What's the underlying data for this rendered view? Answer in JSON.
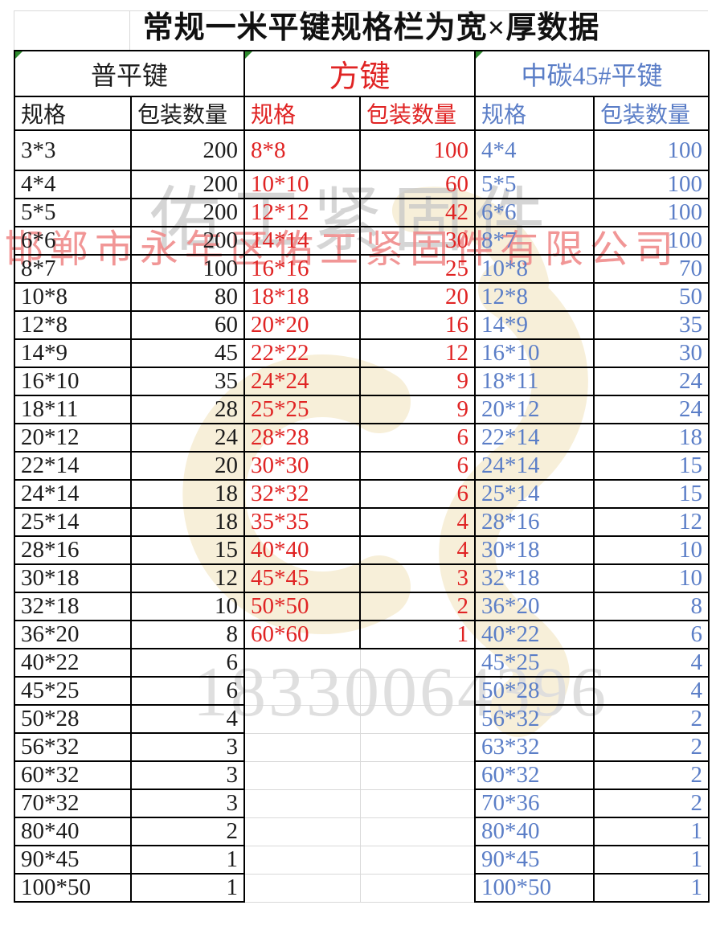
{
  "page": {
    "title": "常规一米平键规格栏为宽×厚数据"
  },
  "colors": {
    "border": "#000000",
    "gridline": "#d9d9d9",
    "section_black": "#1c1c1c",
    "section_red": "#e02424",
    "section_blue": "#5b7ec7",
    "watermark_gray": "#c6c6c6",
    "watermark_pink": "#f08e8e",
    "watermark_phone": "#dedede",
    "watermark_tan": "#f7efd9",
    "triangle_green": "#2e8b2e"
  },
  "sections": [
    {
      "title": "普平键",
      "headers": {
        "spec": "规格",
        "qty": "包装数量"
      },
      "rows": [
        [
          "3*3",
          200
        ],
        [
          "4*4",
          200
        ],
        [
          "5*5",
          200
        ],
        [
          "6*6",
          200
        ],
        [
          "8*7",
          100
        ],
        [
          "10*8",
          80
        ],
        [
          "12*8",
          60
        ],
        [
          "14*9",
          45
        ],
        [
          "16*10",
          35
        ],
        [
          "18*11",
          28
        ],
        [
          "20*12",
          24
        ],
        [
          "22*14",
          20
        ],
        [
          "24*14",
          18
        ],
        [
          "25*14",
          18
        ],
        [
          "28*16",
          15
        ],
        [
          "30*18",
          12
        ],
        [
          "32*18",
          10
        ],
        [
          "36*20",
          8
        ],
        [
          "40*22",
          6
        ],
        [
          "45*25",
          6
        ],
        [
          "50*28",
          4
        ],
        [
          "56*32",
          3
        ],
        [
          "60*32",
          3
        ],
        [
          "70*32",
          3
        ],
        [
          "80*40",
          2
        ],
        [
          "90*45",
          1
        ],
        [
          "100*50",
          1
        ]
      ]
    },
    {
      "title": "方键",
      "headers": {
        "spec": "规格",
        "qty": "包装数量"
      },
      "rows": [
        [
          "8*8",
          100
        ],
        [
          "10*10",
          60
        ],
        [
          "12*12",
          42
        ],
        [
          "14*14",
          30
        ],
        [
          "16*16",
          25
        ],
        [
          "18*18",
          20
        ],
        [
          "20*20",
          16
        ],
        [
          "22*22",
          12
        ],
        [
          "24*24",
          9
        ],
        [
          "25*25",
          9
        ],
        [
          "28*28",
          6
        ],
        [
          "30*30",
          6
        ],
        [
          "32*32",
          6
        ],
        [
          "35*35",
          4
        ],
        [
          "40*40",
          4
        ],
        [
          "45*45",
          3
        ],
        [
          "50*50",
          2
        ],
        [
          "60*60",
          1
        ]
      ]
    },
    {
      "title": "中碳45#平键",
      "headers": {
        "spec": "规格",
        "qty": "包装数量"
      },
      "rows": [
        [
          "4*4",
          100
        ],
        [
          "5*5",
          100
        ],
        [
          "6*6",
          100
        ],
        [
          "8*7",
          100
        ],
        [
          "10*8",
          70
        ],
        [
          "12*8",
          50
        ],
        [
          "14*9",
          35
        ],
        [
          "16*10",
          30
        ],
        [
          "18*11",
          24
        ],
        [
          "20*12",
          24
        ],
        [
          "22*14",
          18
        ],
        [
          "24*14",
          15
        ],
        [
          "25*14",
          15
        ],
        [
          "28*16",
          12
        ],
        [
          "30*18",
          10
        ],
        [
          "32*18",
          10
        ],
        [
          "36*20",
          8
        ],
        [
          "40*22",
          6
        ],
        [
          "45*25",
          4
        ],
        [
          "50*28",
          4
        ],
        [
          "56*32",
          2
        ],
        [
          "63*32",
          2
        ],
        [
          "60*32",
          2
        ],
        [
          "70*36",
          2
        ],
        [
          "80*40",
          1
        ],
        [
          "90*45",
          1
        ],
        [
          "100*50",
          1
        ]
      ]
    }
  ],
  "watermarks": {
    "brand_short": "佑工紧固件",
    "company": "邯郸市永年区佑工紧固件有限公司",
    "phone": "18330064396"
  }
}
